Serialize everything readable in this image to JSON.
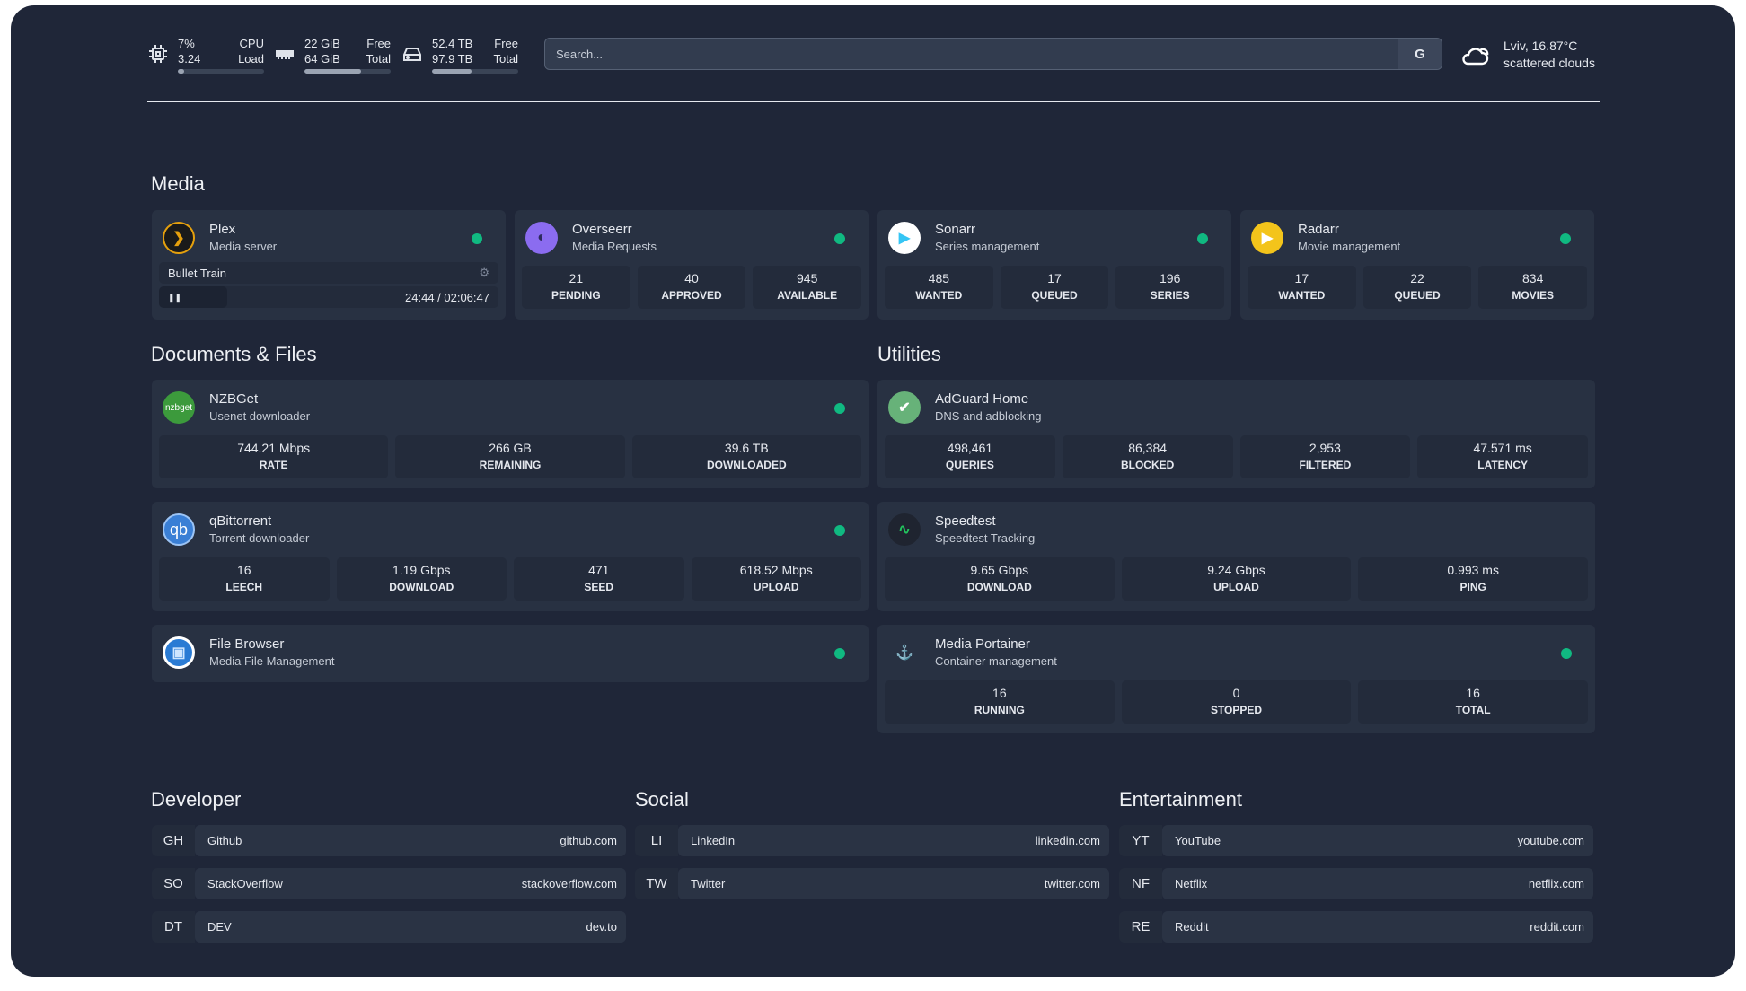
{
  "topbar": {
    "cpu": {
      "icon": "cpu-icon",
      "value1": "7%",
      "value2": "3.24",
      "label1": "CPU",
      "label2": "Load",
      "usage": 0.07
    },
    "ram": {
      "icon": "memory-icon",
      "value1": "22 GiB",
      "value2": "64 GiB",
      "label1": "Free",
      "label2": "Total",
      "usage": 0.66
    },
    "disk": {
      "icon": "hard-drive-icon",
      "value1": "52.4 TB",
      "value2": "97.9 TB",
      "label1": "Free",
      "label2": "Total",
      "usage": 0.46
    },
    "search": {
      "placeholder": "Search...",
      "provider": "G"
    },
    "weather": {
      "icon": "cloud-icon",
      "location": "Lviv, 16.87°C",
      "condition": "scattered clouds"
    }
  },
  "colors": {
    "background": "#1f2638",
    "card": "#283142",
    "stat": "#232b3b",
    "status_ok": "#10b981"
  },
  "sections": {
    "media": "Media",
    "docs": "Documents & Files",
    "utilities": "Utilities",
    "developer": "Developer",
    "social": "Social",
    "entertainment": "Entertainment"
  },
  "media": [
    {
      "title": "Plex",
      "sub": "Media server",
      "icon": "plex-icon",
      "status": true,
      "now_playing": {
        "title": "Bullet Train",
        "time": "24:44 / 02:06:47",
        "progress": 0.2
      }
    },
    {
      "title": "Overseerr",
      "sub": "Media Requests",
      "icon": "overseerr-icon",
      "status": true,
      "stats": [
        {
          "v": "21",
          "l": "PENDING"
        },
        {
          "v": "40",
          "l": "APPROVED"
        },
        {
          "v": "945",
          "l": "AVAILABLE"
        }
      ]
    },
    {
      "title": "Sonarr",
      "sub": "Series management",
      "icon": "sonarr-icon",
      "status": true,
      "stats": [
        {
          "v": "485",
          "l": "WANTED"
        },
        {
          "v": "17",
          "l": "QUEUED"
        },
        {
          "v": "196",
          "l": "SERIES"
        }
      ]
    },
    {
      "title": "Radarr",
      "sub": "Movie management",
      "icon": "radarr-icon",
      "status": true,
      "stats": [
        {
          "v": "17",
          "l": "WANTED"
        },
        {
          "v": "22",
          "l": "QUEUED"
        },
        {
          "v": "834",
          "l": "MOVIES"
        }
      ]
    }
  ],
  "docs": [
    {
      "title": "NZBGet",
      "sub": "Usenet downloader",
      "icon": "nzbget-icon",
      "icon_text": "nzbget",
      "status": true,
      "stats": [
        {
          "v": "744.21 Mbps",
          "l": "RATE"
        },
        {
          "v": "266 GB",
          "l": "REMAINING"
        },
        {
          "v": "39.6 TB",
          "l": "DOWNLOADED"
        }
      ]
    },
    {
      "title": "qBittorrent",
      "sub": "Torrent downloader",
      "icon": "qbittorrent-icon",
      "icon_text": "qb",
      "status": true,
      "stats": [
        {
          "v": "16",
          "l": "LEECH"
        },
        {
          "v": "1.19 Gbps",
          "l": "DOWNLOAD"
        },
        {
          "v": "471",
          "l": "SEED"
        },
        {
          "v": "618.52 Mbps",
          "l": "UPLOAD"
        }
      ]
    },
    {
      "title": "File Browser",
      "sub": "Media File Management",
      "icon": "file-browser-icon",
      "status": true,
      "stats": []
    }
  ],
  "utilities": [
    {
      "title": "AdGuard Home",
      "sub": "DNS and adblocking",
      "icon": "adguard-icon",
      "status": false,
      "stats": [
        {
          "v": "498,461",
          "l": "QUERIES"
        },
        {
          "v": "86,384",
          "l": "BLOCKED"
        },
        {
          "v": "2,953",
          "l": "FILTERED"
        },
        {
          "v": "47.571 ms",
          "l": "LATENCY"
        }
      ]
    },
    {
      "title": "Speedtest",
      "sub": "Speedtest Tracking",
      "icon": "speedtest-icon",
      "status": false,
      "stats": [
        {
          "v": "9.65 Gbps",
          "l": "DOWNLOAD"
        },
        {
          "v": "9.24 Gbps",
          "l": "UPLOAD"
        },
        {
          "v": "0.993 ms",
          "l": "PING"
        }
      ]
    },
    {
      "title": "Media Portainer",
      "sub": "Container management",
      "icon": "portainer-icon",
      "status": true,
      "stats": [
        {
          "v": "16",
          "l": "RUNNING"
        },
        {
          "v": "0",
          "l": "STOPPED"
        },
        {
          "v": "16",
          "l": "TOTAL"
        }
      ]
    }
  ],
  "bookmarks": {
    "developer": [
      {
        "abbr": "GH",
        "name": "Github",
        "url": "github.com"
      },
      {
        "abbr": "SO",
        "name": "StackOverflow",
        "url": "stackoverflow.com"
      },
      {
        "abbr": "DT",
        "name": "DEV",
        "url": "dev.to"
      }
    ],
    "social": [
      {
        "abbr": "LI",
        "name": "LinkedIn",
        "url": "linkedin.com"
      },
      {
        "abbr": "TW",
        "name": "Twitter",
        "url": "twitter.com"
      }
    ],
    "entertainment": [
      {
        "abbr": "YT",
        "name": "YouTube",
        "url": "youtube.com"
      },
      {
        "abbr": "NF",
        "name": "Netflix",
        "url": "netflix.com"
      },
      {
        "abbr": "RE",
        "name": "Reddit",
        "url": "reddit.com"
      }
    ]
  }
}
